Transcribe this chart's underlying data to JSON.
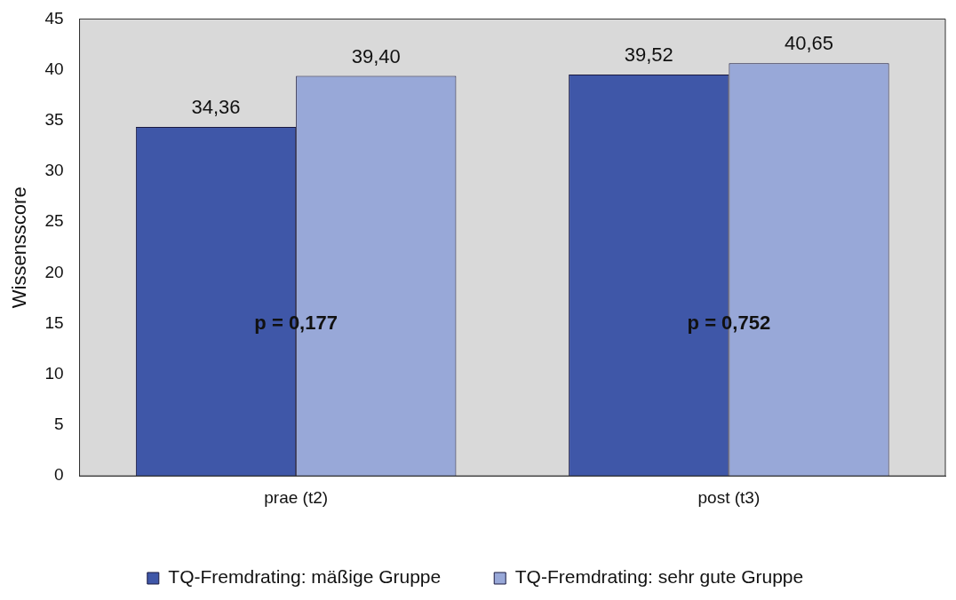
{
  "chart_data": {
    "type": "bar",
    "ylabel": "Wissensscore",
    "categories": [
      "prae (t2)",
      "post (t3)"
    ],
    "series": [
      {
        "name": "TQ-Fremdrating: mäßige Gruppe",
        "color": "#3f57a8",
        "values": [
          34.36,
          39.52
        ],
        "value_labels": [
          "34,36",
          "39,52"
        ]
      },
      {
        "name": "TQ-Fremdrating: sehr gute Gruppe",
        "color": "#98a8d8",
        "values": [
          39.4,
          40.65
        ],
        "value_labels": [
          "39,40",
          "40,65"
        ]
      }
    ],
    "ylim": [
      0,
      45
    ],
    "yticks": [
      0,
      5,
      10,
      15,
      20,
      25,
      30,
      35,
      40,
      45
    ],
    "grid": false,
    "legend": "bottom",
    "annotations": [
      {
        "text": "p = 0,177",
        "x": "prae (t2)",
        "y": 15
      },
      {
        "text": "p = 0,752",
        "x": "post (t3)",
        "y": 15
      }
    ]
  }
}
